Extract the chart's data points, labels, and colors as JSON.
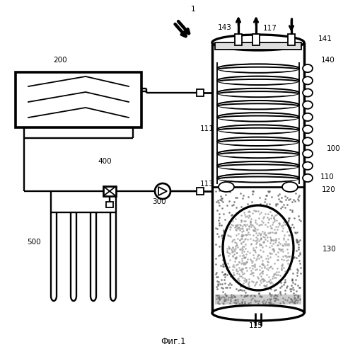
{
  "title": "Фиг.1",
  "background_color": "#ffffff",
  "line_color": "#000000",
  "label_1": "1",
  "label_200": "200",
  "label_100": "100",
  "label_110": "110",
  "label_111": "111",
  "label_113": "113",
  "label_115": "115",
  "label_117": "117",
  "label_120": "120",
  "label_130": "130",
  "label_140": "140",
  "label_141": "141",
  "label_143": "143",
  "label_300": "300",
  "label_400": "400",
  "label_500": "500"
}
